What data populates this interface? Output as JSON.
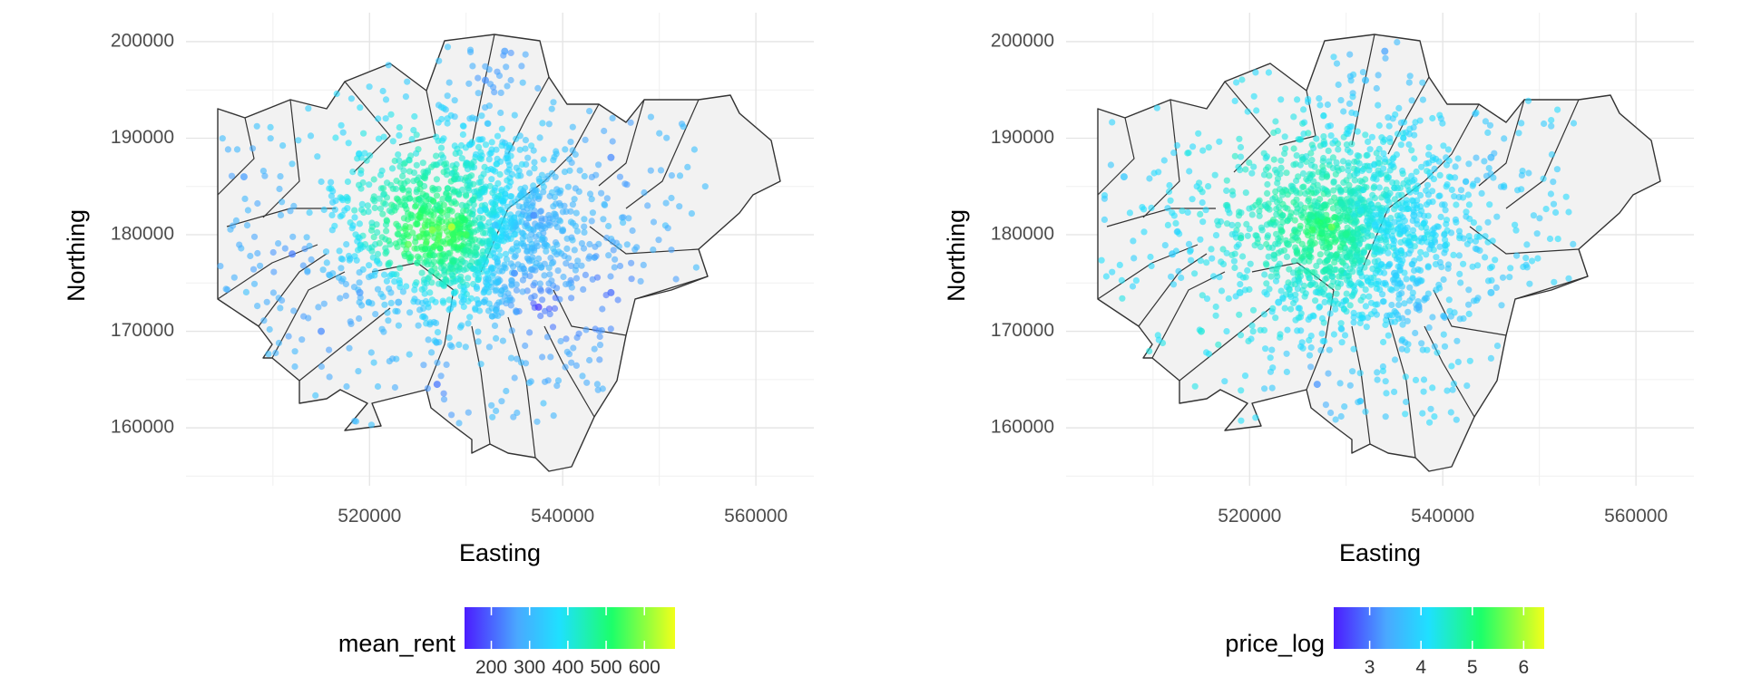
{
  "chart_data": [
    {
      "type": "scatter",
      "xlabel": "Easting",
      "ylabel": "Northing",
      "xlim": [
        501000,
        566000
      ],
      "ylim": [
        154000,
        203000
      ],
      "xticks": [
        520000,
        540000,
        560000
      ],
      "xtick_labels": [
        "520000",
        "540000",
        "560000"
      ],
      "yticks": [
        160000,
        170000,
        180000,
        190000,
        200000
      ],
      "ytick_labels": [
        "160000",
        "170000",
        "180000",
        "190000",
        "200000"
      ],
      "grid": true,
      "background": "map of borough boundaries",
      "color_variable": "mean_rent",
      "legend": {
        "title": "mean_rent",
        "position": "bottom",
        "range": [
          130,
          680
        ],
        "ticks": [
          200,
          300,
          400,
          500,
          600
        ],
        "tick_labels": [
          "200",
          "300",
          "400",
          "500",
          "600"
        ]
      },
      "seed": 11,
      "points": [
        {
          "x": 526500,
          "y": 180500,
          "value": 600
        },
        {
          "x": 528500,
          "y": 180800,
          "value": 650
        },
        {
          "x": 530000,
          "y": 180000,
          "value": 540
        },
        {
          "x": 524000,
          "y": 179000,
          "value": 560
        },
        {
          "x": 527000,
          "y": 183000,
          "value": 470
        },
        {
          "x": 531500,
          "y": 182500,
          "value": 380
        },
        {
          "x": 533000,
          "y": 181000,
          "value": 330
        },
        {
          "x": 537000,
          "y": 182000,
          "value": 240
        },
        {
          "x": 535000,
          "y": 176000,
          "value": 250
        },
        {
          "x": 537500,
          "y": 172500,
          "value": 160
        },
        {
          "x": 523000,
          "y": 173000,
          "value": 300
        },
        {
          "x": 515000,
          "y": 170000,
          "value": 240
        },
        {
          "x": 512000,
          "y": 178000,
          "value": 230
        },
        {
          "x": 507000,
          "y": 186000,
          "value": 260
        },
        {
          "x": 532000,
          "y": 196000,
          "value": 250
        },
        {
          "x": 534000,
          "y": 199000,
          "value": 260
        },
        {
          "x": 545000,
          "y": 188000,
          "value": 240
        },
        {
          "x": 545000,
          "y": 174000,
          "value": 210
        },
        {
          "x": 527000,
          "y": 164500,
          "value": 220
        },
        {
          "x": 519000,
          "y": 174000,
          "value": 260
        }
      ]
    },
    {
      "type": "scatter",
      "xlabel": "Easting",
      "ylabel": "Northing",
      "xlim": [
        501000,
        566000
      ],
      "ylim": [
        154000,
        203000
      ],
      "xticks": [
        520000,
        540000,
        560000
      ],
      "xtick_labels": [
        "520000",
        "540000",
        "560000"
      ],
      "yticks": [
        160000,
        170000,
        180000,
        190000,
        200000
      ],
      "ytick_labels": [
        "160000",
        "170000",
        "180000",
        "190000",
        "200000"
      ],
      "grid": true,
      "background": "map of borough boundaries",
      "color_variable": "price_log",
      "legend": {
        "title": "price_log",
        "position": "bottom",
        "range": [
          2.3,
          6.4
        ],
        "ticks": [
          3,
          4,
          5,
          6
        ],
        "tick_labels": [
          "3",
          "4",
          "5",
          "6"
        ]
      },
      "seed": 29,
      "points": [
        {
          "x": 526500,
          "y": 180500,
          "value": 5.3
        },
        {
          "x": 528500,
          "y": 180800,
          "value": 5.6
        },
        {
          "x": 530000,
          "y": 180000,
          "value": 4.9
        },
        {
          "x": 524000,
          "y": 179000,
          "value": 4.7
        },
        {
          "x": 527000,
          "y": 183000,
          "value": 4.6
        },
        {
          "x": 531500,
          "y": 182500,
          "value": 4.3
        },
        {
          "x": 533000,
          "y": 181000,
          "value": 4.1
        },
        {
          "x": 537000,
          "y": 182000,
          "value": 4.0
        },
        {
          "x": 535000,
          "y": 176000,
          "value": 3.9
        },
        {
          "x": 537500,
          "y": 172500,
          "value": 3.5
        },
        {
          "x": 523000,
          "y": 173000,
          "value": 4.1
        },
        {
          "x": 515000,
          "y": 170000,
          "value": 4.4
        },
        {
          "x": 512000,
          "y": 178000,
          "value": 3.9
        },
        {
          "x": 507000,
          "y": 186000,
          "value": 3.8
        },
        {
          "x": 532000,
          "y": 196000,
          "value": 3.7
        },
        {
          "x": 534000,
          "y": 199000,
          "value": 3.3
        },
        {
          "x": 545000,
          "y": 188000,
          "value": 3.6
        },
        {
          "x": 545000,
          "y": 174000,
          "value": 3.8
        },
        {
          "x": 527000,
          "y": 164500,
          "value": 3.2
        },
        {
          "x": 519000,
          "y": 174000,
          "value": 4.2
        }
      ]
    }
  ]
}
